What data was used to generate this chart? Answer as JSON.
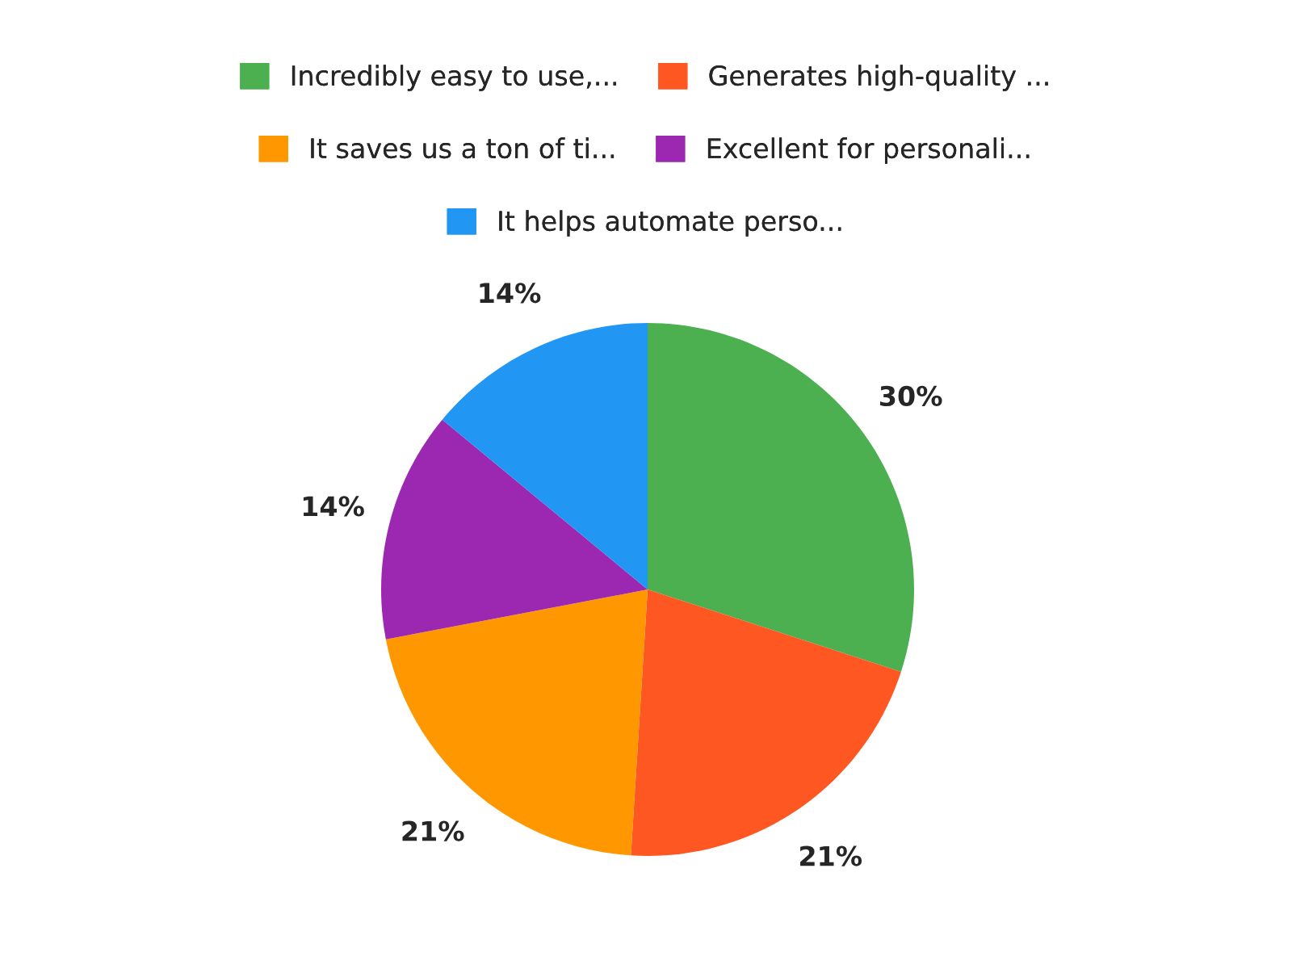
{
  "chart_data": {
    "type": "pie",
    "categories": [
      "Incredibly easy to use,...",
      "Generates high-quality ...",
      "It saves us a ton of ti...",
      "Excellent for personali...",
      "It helps automate perso..."
    ],
    "values": [
      30,
      21,
      21,
      14,
      14
    ],
    "colors": [
      "#4caf50",
      "#ff5722",
      "#ff9800",
      "#9c27b0",
      "#2196f3"
    ],
    "value_labels": [
      "30%",
      "21%",
      "21%",
      "14%",
      "14%"
    ],
    "legend": "top"
  }
}
